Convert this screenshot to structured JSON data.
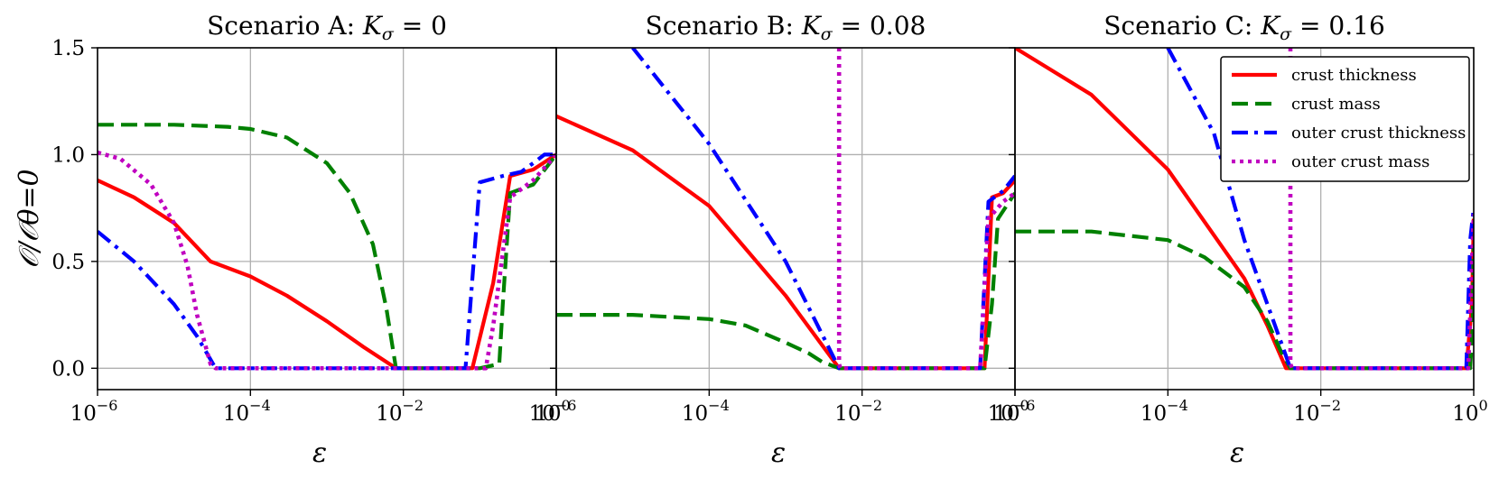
{
  "colors": {
    "crust_thickness": "#ff0000",
    "crust_mass": "#008000",
    "outer_crust_thickness": "#0000ff",
    "outer_crust_mass": "#c000c0",
    "grid": "#b0b0b0",
    "frame": "#000000"
  },
  "chart_data": {
    "type": "line",
    "sharey": true,
    "ylabel": "𝒪/𝒪θ=0",
    "ylim": [
      -0.1,
      1.5
    ],
    "yticks": [
      0.0,
      0.5,
      1.0,
      1.5
    ],
    "ytick_labels": [
      "0.0",
      "0.5",
      "1.0",
      "1.5"
    ],
    "xscale": "log",
    "xlim": [
      1e-06,
      1
    ],
    "xticks": [
      1e-06,
      0.0001,
      0.01,
      1
    ],
    "xtick_labels": [
      [
        "10",
        "−6"
      ],
      [
        "10",
        "−4"
      ],
      [
        "10",
        "−2"
      ],
      [
        "10",
        "0"
      ]
    ],
    "grid": true,
    "legend": {
      "placement": "upper-right of third panel",
      "entries": [
        {
          "key": "crust_thickness",
          "label": "crust thickness",
          "style": "solid"
        },
        {
          "key": "crust_mass",
          "label": "crust mass",
          "style": "dashed"
        },
        {
          "key": "outer_crust_thickness",
          "label": "outer crust thickness",
          "style": "dashdot"
        },
        {
          "key": "outer_crust_mass",
          "label": "outer crust mass",
          "style": "dotted"
        }
      ]
    },
    "panels": [
      {
        "title_main": "Scenario A: ",
        "title_K": "K",
        "title_sub": "σ",
        "title_rest": " = 0",
        "xlabel": "ε",
        "series": [
          {
            "key": "crust_thickness",
            "x": [
              1e-06,
              3e-06,
              1e-05,
              3e-05,
              0.0001,
              0.0003,
              0.001,
              0.003,
              0.008,
              0.01,
              0.05,
              0.08,
              0.15,
              0.25,
              0.5,
              1.0
            ],
            "y": [
              0.88,
              0.8,
              0.68,
              0.5,
              0.43,
              0.34,
              0.22,
              0.1,
              0.0,
              0.0,
              0.0,
              0.0,
              0.4,
              0.9,
              0.93,
              1.0
            ]
          },
          {
            "key": "crust_mass",
            "x": [
              1e-06,
              1e-05,
              5e-05,
              0.0001,
              0.0003,
              0.001,
              0.002,
              0.004,
              0.006,
              0.008,
              0.01,
              0.1,
              0.18,
              0.2,
              0.25,
              0.5,
              1.0
            ],
            "y": [
              1.14,
              1.14,
              1.13,
              1.12,
              1.08,
              0.96,
              0.82,
              0.58,
              0.28,
              0.0,
              0.0,
              0.0,
              0.02,
              0.3,
              0.82,
              0.86,
              1.0
            ]
          },
          {
            "key": "outer_crust_thickness",
            "x": [
              1e-06,
              3e-06,
              1e-05,
              2e-05,
              3.5e-05,
              0.0001,
              0.001,
              0.01,
              0.065,
              0.1,
              0.2,
              0.35,
              0.5,
              0.7,
              1.0
            ],
            "y": [
              0.64,
              0.5,
              0.3,
              0.15,
              0.0,
              0.0,
              0.0,
              0.0,
              0.0,
              0.87,
              0.9,
              0.92,
              0.96,
              1.0,
              1.0
            ]
          },
          {
            "key": "outer_crust_mass",
            "x": [
              1e-06,
              2e-06,
              5e-06,
              1e-05,
              1.5e-05,
              2e-05,
              3e-05,
              3.5e-05,
              0.0001,
              0.001,
              0.01,
              0.12,
              0.15,
              0.25,
              0.5,
              1.0
            ],
            "y": [
              1.01,
              0.98,
              0.86,
              0.68,
              0.48,
              0.25,
              0.02,
              0.0,
              0.0,
              0.0,
              0.0,
              0.0,
              0.2,
              0.8,
              0.88,
              1.0
            ]
          }
        ]
      },
      {
        "title_main": "Scenario B: ",
        "title_K": "K",
        "title_sub": "σ",
        "title_rest": " = 0.08",
        "xlabel": "ε",
        "series": [
          {
            "key": "crust_thickness",
            "x": [
              1e-06,
              1e-05,
              0.0001,
              0.001,
              0.005,
              0.2,
              0.4,
              0.5,
              0.7,
              1.0
            ],
            "y": [
              1.18,
              1.02,
              0.76,
              0.34,
              0.0,
              0.0,
              0.0,
              0.8,
              0.82,
              0.88
            ]
          },
          {
            "key": "crust_mass",
            "x": [
              1e-06,
              1e-05,
              0.0001,
              0.0003,
              0.001,
              0.002,
              0.003,
              0.005,
              0.1,
              0.4,
              0.5,
              0.6,
              1.0
            ],
            "y": [
              0.25,
              0.25,
              0.23,
              0.2,
              0.12,
              0.07,
              0.03,
              0.0,
              0.0,
              0.0,
              0.3,
              0.7,
              0.82
            ]
          },
          {
            "key": "outer_crust_thickness",
            "x": [
              1e-05,
              0.0001,
              0.001,
              0.005,
              0.2,
              0.35,
              0.45,
              0.7,
              1.0
            ],
            "y": [
              1.5,
              1.05,
              0.5,
              0.0,
              0.0,
              0.0,
              0.78,
              0.83,
              0.9
            ]
          },
          {
            "key": "outer_crust_mass",
            "x": [
              0.005,
              0.005,
              0.0052,
              0.2,
              0.35,
              0.45,
              0.7,
              1.0
            ],
            "y": [
              1.5,
              0.02,
              0.0,
              0.0,
              0.0,
              0.7,
              0.78,
              0.82
            ]
          }
        ]
      },
      {
        "title_main": "Scenario C: ",
        "title_K": "K",
        "title_sub": "σ",
        "title_rest": " = 0.16",
        "xlabel": "ε",
        "series": [
          {
            "key": "crust_thickness",
            "x": [
              1e-06,
              1e-05,
              0.0001,
              0.001,
              0.002,
              0.0035,
              0.1,
              0.8,
              0.95,
              1.0
            ],
            "y": [
              1.5,
              1.28,
              0.93,
              0.42,
              0.2,
              0.0,
              0.0,
              0.0,
              0.3,
              0.7
            ]
          },
          {
            "key": "crust_mass",
            "x": [
              1e-06,
              1e-05,
              0.0001,
              0.0003,
              0.001,
              0.002,
              0.003,
              0.004,
              0.1,
              0.9,
              0.97,
              1.0
            ],
            "y": [
              0.64,
              0.64,
              0.6,
              0.52,
              0.38,
              0.22,
              0.08,
              0.0,
              0.0,
              0.0,
              0.2,
              0.58
            ]
          },
          {
            "key": "outer_crust_thickness",
            "x": [
              0.0001,
              0.0004,
              0.001,
              0.002,
              0.004,
              0.1,
              0.8,
              0.9,
              1.0
            ],
            "y": [
              1.5,
              1.1,
              0.6,
              0.3,
              0.0,
              0.0,
              0.0,
              0.6,
              0.75
            ]
          },
          {
            "key": "outer_crust_mass",
            "x": [
              0.004,
              0.004,
              0.0042,
              0.1,
              0.85,
              0.95,
              1.0
            ],
            "y": [
              1.5,
              0.02,
              0.0,
              0.0,
              0.0,
              0.5,
              0.72
            ]
          }
        ]
      }
    ]
  }
}
